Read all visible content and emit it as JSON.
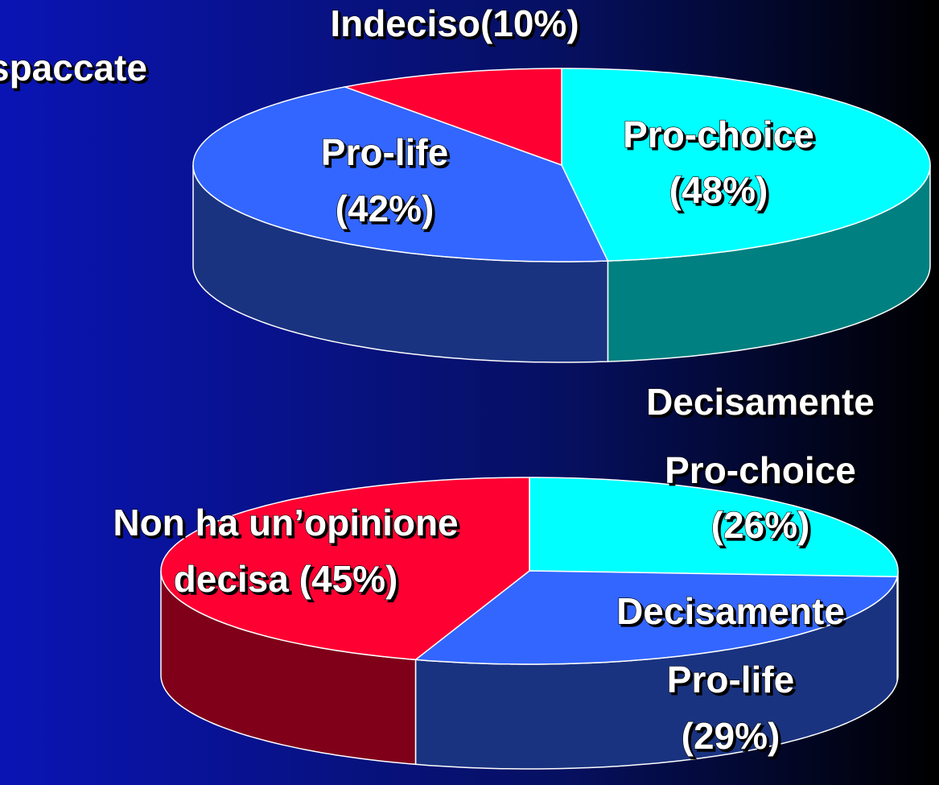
{
  "slide_text": "spaccate",
  "chart_data": [
    {
      "type": "pie",
      "categories": [
        [
          "Pro-choice"
        ],
        [
          "Pro-life"
        ],
        [
          "Indeciso"
        ]
      ],
      "values": [
        48,
        42,
        10
      ],
      "value_labels": [
        "(48%)",
        "(42%)",
        "(10%)"
      ],
      "colors": [
        "#00ffff",
        "#3366ff",
        "#ff0033"
      ]
    },
    {
      "type": "pie",
      "categories": [
        [
          "Decisamente",
          "Pro-choice"
        ],
        [
          "Decisamente",
          "Pro-life"
        ],
        [
          "Non ha un’opinione",
          "decisa"
        ]
      ],
      "values": [
        26,
        29,
        45
      ],
      "value_labels": [
        "(26%)",
        "(29%)",
        "(45%)"
      ],
      "colors": [
        "#00ffff",
        "#3366ff",
        "#ff0033"
      ]
    }
  ]
}
